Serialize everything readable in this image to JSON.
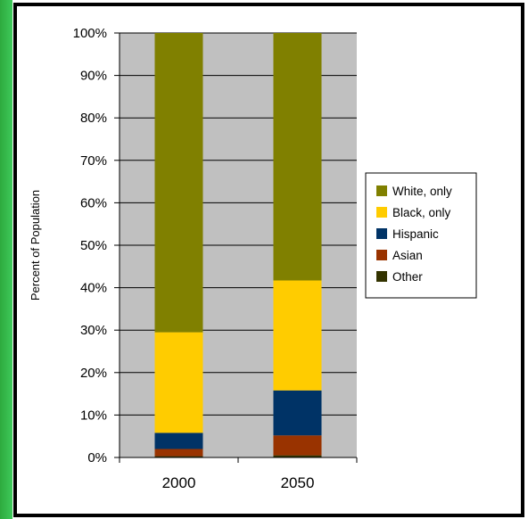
{
  "chart_data": {
    "type": "bar",
    "stacked": true,
    "percent_stacked": true,
    "title": "",
    "xlabel": "",
    "ylabel": "Percent of Population",
    "categories": [
      "2000",
      "2050"
    ],
    "ylim": [
      0,
      100
    ],
    "yticks": [
      "0%",
      "10%",
      "20%",
      "30%",
      "40%",
      "50%",
      "60%",
      "70%",
      "80%",
      "90%",
      "100%"
    ],
    "grid": true,
    "plot_background": "#c0c0c0",
    "legend_position": "right",
    "series": [
      {
        "name": "Other",
        "color": "#333300",
        "values": [
          0.3,
          0.5
        ]
      },
      {
        "name": "Asian",
        "color": "#993300",
        "values": [
          1.7,
          4.7
        ]
      },
      {
        "name": "Hispanic",
        "color": "#003366",
        "values": [
          3.8,
          10.6
        ]
      },
      {
        "name": "Black, only",
        "color": "#ffcc00",
        "values": [
          23.7,
          25.9
        ]
      },
      {
        "name": "White, only",
        "color": "#808000",
        "values": [
          70.5,
          58.3
        ]
      }
    ],
    "legend_order": [
      "White, only",
      "Black, only",
      "Hispanic",
      "Asian",
      "Other"
    ]
  }
}
